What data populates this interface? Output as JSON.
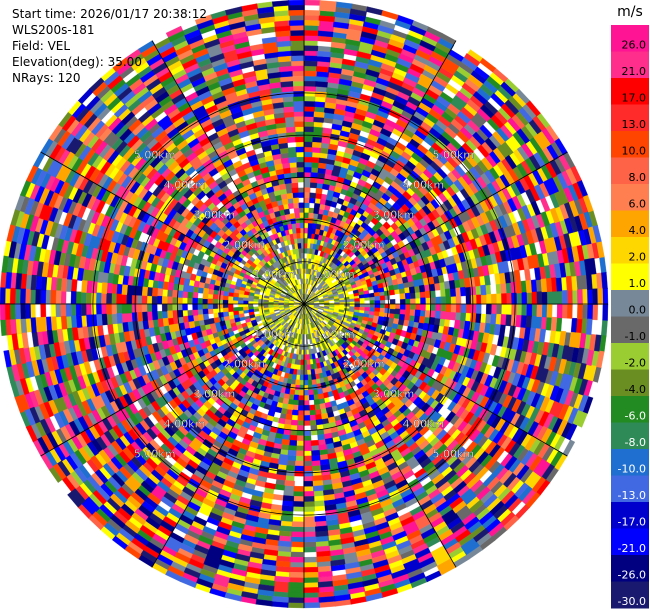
{
  "header": {
    "start_time_label": "Start time:",
    "start_time": "2026/01/17 20:38:12",
    "instrument": "WLS200s-181",
    "field_label": "Field:",
    "field": "VEL",
    "elevation_label": "Elevation(deg):",
    "elevation": "35.00",
    "nrays_label": "NRays:",
    "nrays": "120"
  },
  "chart_data": {
    "type": "heatmap",
    "projection": "polar PPI",
    "field": "VEL",
    "nrays": 120,
    "elevation_deg": 35.0,
    "range_rings_km": [
      1.0,
      2.0,
      3.0,
      4.0,
      5.0
    ],
    "ring_label_strings": [
      "1.00km",
      "2.00km",
      "3.00km",
      "4.00km",
      "5.00km"
    ],
    "max_range_km": 7.2,
    "range_gate_km": 0.12,
    "azimuth_lines_deg": [
      0,
      30,
      60,
      90,
      120,
      150,
      180,
      210,
      240,
      270,
      300,
      330
    ],
    "colorbar": {
      "unit": "m/s",
      "tick_labels": [
        "26.0",
        "21.0",
        "17.0",
        "13.0",
        "10.0",
        "8.0",
        "6.0",
        "4.0",
        "2.0",
        "1.0",
        "0.0",
        "-1.0",
        "-2.0",
        "-4.0",
        "-6.0",
        "-8.0",
        "-10.0",
        "-13.0",
        "-17.0",
        "-21.0",
        "-26.0",
        "-30.0"
      ],
      "colors": [
        "#ff1493",
        "#ff2d8c",
        "#ff0000",
        "#ff2a2a",
        "#ff4500",
        "#ff6347",
        "#ff7f50",
        "#ffa500",
        "#ffd700",
        "#ffff00",
        "#778899",
        "#696969",
        "#9acd32",
        "#6b8e23",
        "#228b22",
        "#2e8b57",
        "#1e6fcf",
        "#4169e1",
        "#0000cd",
        "#0000ff",
        "#000080",
        "#191970"
      ]
    },
    "near_range": {
      "radius_km": 1.2,
      "color_weights": {
        "#ffff00": 0.35,
        "#ffd700": 0.1,
        "#778899": 0.2,
        "#696969": 0.1,
        "#9acd32": 0.1,
        "#6b8e23": 0.1,
        "#ffffff": 0.05
      }
    },
    "far_range_random_palette": true,
    "random_seed": 181
  }
}
